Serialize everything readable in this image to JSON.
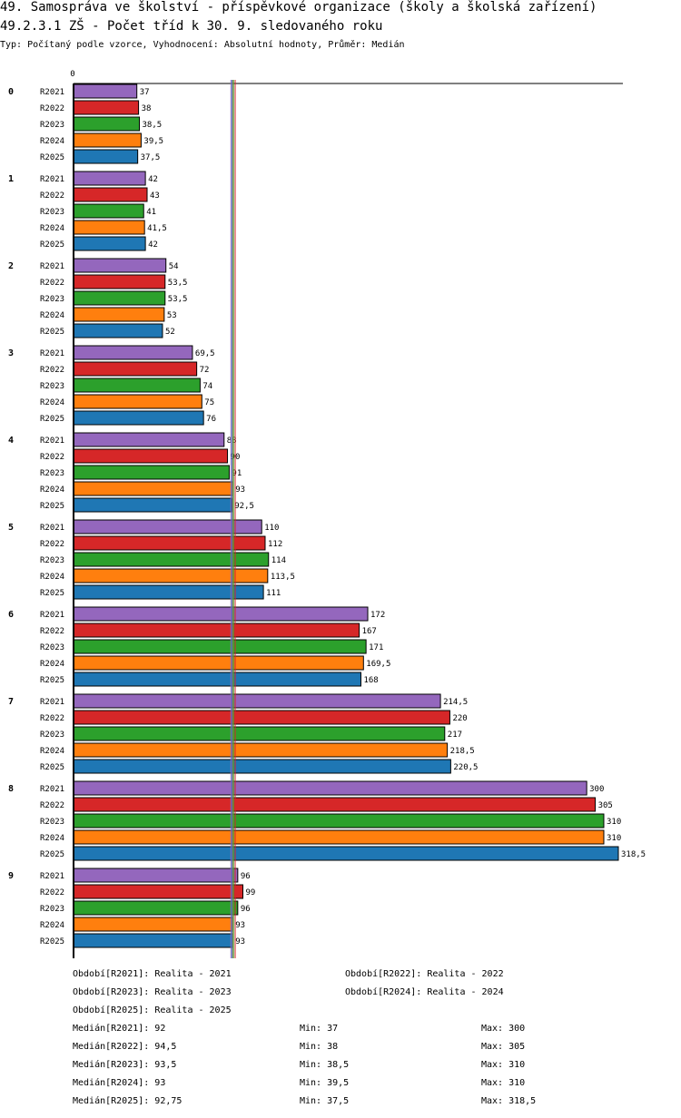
{
  "header": {
    "title_line1": "49. Samospráva ve školství - příspěvkové organizace (školy a školská zařízení)",
    "title_line2": "49.2.3.1 ZŠ - Počet tříd k 30. 9. sledovaného roku",
    "subtitle": "Typ: Počítaný podle vzorce, Vyhodnocení: Absolutní hodnoty, Průměr: Medián"
  },
  "colors": {
    "R2021": "#9467bd",
    "R2022": "#d62728",
    "R2023": "#2ca02c",
    "R2024": "#ff7f0e",
    "R2025": "#1f77b4"
  },
  "chart_data": {
    "type": "bar",
    "orientation": "horizontal",
    "axis_zero_label": "0",
    "series_names": [
      "R2021",
      "R2022",
      "R2023",
      "R2024",
      "R2025"
    ],
    "groups": [
      {
        "label": "0",
        "values": [
          37,
          38,
          38.5,
          39.5,
          37.5
        ],
        "value_labels": [
          "37",
          "38",
          "38,5",
          "39,5",
          "37,5"
        ]
      },
      {
        "label": "1",
        "values": [
          42,
          43,
          41,
          41.5,
          42
        ],
        "value_labels": [
          "42",
          "43",
          "41",
          "41,5",
          "42"
        ]
      },
      {
        "label": "2",
        "values": [
          54,
          53.5,
          53.5,
          53,
          52
        ],
        "value_labels": [
          "54",
          "53,5",
          "53,5",
          "53",
          "52"
        ]
      },
      {
        "label": "3",
        "values": [
          69.5,
          72,
          74,
          75,
          76
        ],
        "value_labels": [
          "69,5",
          "72",
          "74",
          "75",
          "76"
        ]
      },
      {
        "label": "4",
        "values": [
          88,
          90,
          91,
          93,
          92.5
        ],
        "value_labels": [
          "88",
          "90",
          "91",
          "93",
          "92,5"
        ]
      },
      {
        "label": "5",
        "values": [
          110,
          112,
          114,
          113.5,
          111
        ],
        "value_labels": [
          "110",
          "112",
          "114",
          "113,5",
          "111"
        ]
      },
      {
        "label": "6",
        "values": [
          172,
          167,
          171,
          169.5,
          168
        ],
        "value_labels": [
          "172",
          "167",
          "171",
          "169,5",
          "168"
        ]
      },
      {
        "label": "7",
        "values": [
          214.5,
          220,
          217,
          218.5,
          220.5
        ],
        "value_labels": [
          "214,5",
          "220",
          "217",
          "218,5",
          "220,5"
        ]
      },
      {
        "label": "8",
        "values": [
          300,
          305,
          310,
          310,
          318.5
        ],
        "value_labels": [
          "300",
          "305",
          "310",
          "310",
          "318,5"
        ]
      },
      {
        "label": "9",
        "values": [
          96,
          99,
          96,
          93,
          93
        ],
        "value_labels": [
          "96",
          "99",
          "96",
          "93",
          "93"
        ]
      }
    ],
    "median_lines": [
      92,
      94.5,
      93.5,
      93,
      92.75
    ],
    "xmax": 318.5
  },
  "legend": {
    "periods": [
      {
        "key": "Období[R2021]:",
        "text": "Realita - 2021"
      },
      {
        "key": "Období[R2022]:",
        "text": "Realita - 2022"
      },
      {
        "key": "Období[R2023]:",
        "text": "Realita - 2023"
      },
      {
        "key": "Období[R2024]:",
        "text": "Realita - 2024"
      },
      {
        "key": "Období[R2025]:",
        "text": "Realita - 2025"
      }
    ],
    "stats": [
      {
        "median": "Medián[R2021]: 92",
        "min": "Min: 37",
        "max": "Max: 300"
      },
      {
        "median": "Medián[R2022]: 94,5",
        "min": "Min: 38",
        "max": "Max: 305"
      },
      {
        "median": "Medián[R2023]: 93,5",
        "min": "Min: 38,5",
        "max": "Max: 310"
      },
      {
        "median": "Medián[R2024]: 93",
        "min": "Min: 39,5",
        "max": "Max: 310"
      },
      {
        "median": "Medián[R2025]: 92,75",
        "min": "Min: 37,5",
        "max": "Max: 318,5"
      }
    ]
  }
}
